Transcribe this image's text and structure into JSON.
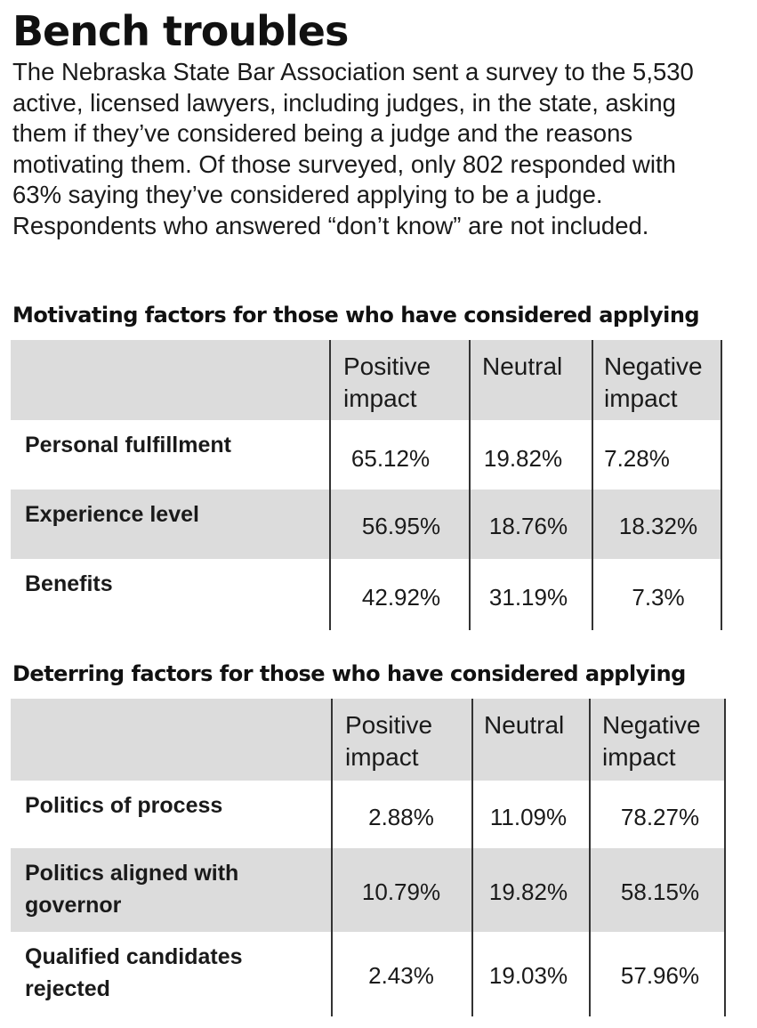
{
  "headline": "Bench troubles",
  "intro": "The Nebraska State Bar Association sent a survey to the 5,530 active, licensed lawyers, including judges, in the state, asking them if they’ve considered being a judge and the reasons motivating them. Of those surveyed, only 802 responded with 63% saying they’ve considered applying to be a judge. Respondents who answered “don’t know” are not included.",
  "chart_data": [
    {
      "type": "table",
      "title": "Motivating factors for those who have considered applying",
      "columns": [
        "Positive impact",
        "Neutral",
        "Negative impact"
      ],
      "rows": [
        {
          "label": "Personal fulfillment",
          "values": [
            "65.12%",
            "19.82%",
            "7.28%"
          ]
        },
        {
          "label": "Experience level",
          "values": [
            "56.95%",
            "18.76%",
            "18.32%"
          ]
        },
        {
          "label": "Benefits",
          "values": [
            "42.92%",
            "31.19%",
            "7.3%"
          ]
        }
      ]
    },
    {
      "type": "table",
      "title": "Deterring factors for those who have considered applying",
      "columns": [
        "Positive impact",
        "Neutral",
        "Negative impact"
      ],
      "rows": [
        {
          "label": "Politics of process",
          "values": [
            "2.88%",
            "11.09%",
            "78.27%"
          ]
        },
        {
          "label": "Politics aligned with governor",
          "values": [
            "10.79%",
            "19.82%",
            "58.15%"
          ]
        },
        {
          "label": "Qualified candidates rejected",
          "values": [
            "2.43%",
            "19.03%",
            "57.96%"
          ]
        }
      ]
    }
  ],
  "colors": {
    "header_shade": "#dcdcdc",
    "rule": "#333333",
    "text": "#1a1a1a"
  }
}
